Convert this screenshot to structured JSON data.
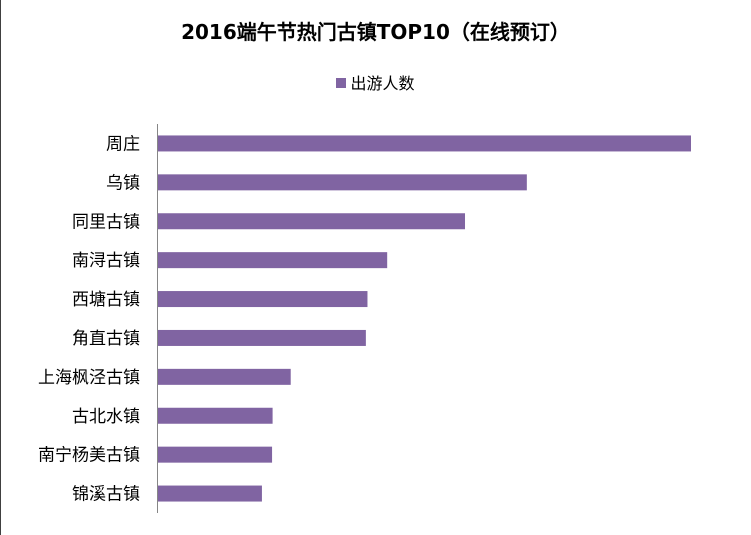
{
  "chart_data": {
    "type": "bar",
    "orientation": "horizontal",
    "title": "2016端午节热门古镇TOP10（在线预订）",
    "legend": {
      "entries": [
        "出游人数"
      ],
      "placement": "top"
    },
    "categories": [
      "周庄",
      "乌镇",
      "同里古镇",
      "南浔古镇",
      "西塘古镇",
      "角直古镇",
      "上海枫泾古镇",
      "古北水镇",
      "南宁杨美古镇",
      "锦溪古镇"
    ],
    "series": [
      {
        "name": "出游人数",
        "values": [
          100,
          69.2,
          57.6,
          43.0,
          39.3,
          39.0,
          24.9,
          21.5,
          21.4,
          19.5
        ]
      }
    ],
    "xlabel": "",
    "ylabel": "",
    "xlim": [
      0,
      100
    ],
    "grid": false,
    "value_note": "relative (no value axis shown)",
    "bar_color": "#8064A2",
    "axis_color": "#868686"
  }
}
